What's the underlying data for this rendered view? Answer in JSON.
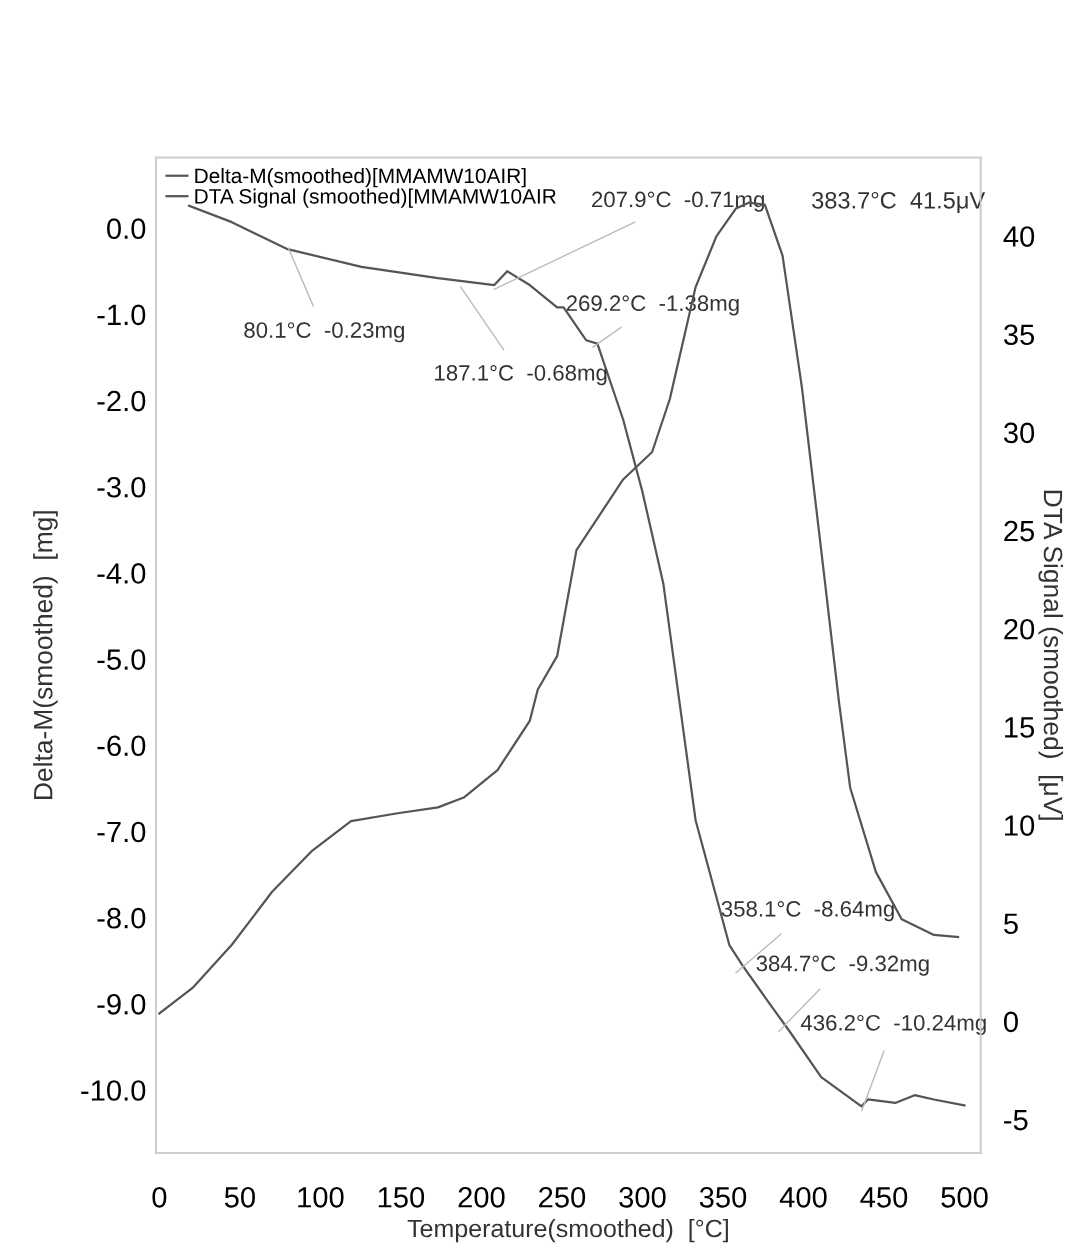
{
  "chart_data": {
    "type": "line",
    "xlabel": "Temperature(smoothed)  [°C]",
    "ylabel": "Delta-M(smoothed)  [mg]",
    "y2label": "DTA Signal (smoothed)  [μV]",
    "series": [
      {
        "name": "Delta-M(smoothed)[MMAMW10AIR]",
        "color": "#555555",
        "x": [
          18.5,
          45,
          79,
          125.5,
          173,
          208,
          216,
          230,
          247,
          251,
          265,
          272,
          288,
          300,
          313,
          323,
          333,
          354,
          362,
          379,
          391,
          411,
          436,
          440,
          457,
          469,
          481,
          500
        ],
        "values": [
          0.26,
          0.07,
          -0.24,
          -0.45,
          -0.58,
          -0.66,
          -0.5,
          -0.66,
          -0.92,
          -0.92,
          -1.3,
          -1.34,
          -2.22,
          -3.06,
          -4.13,
          -5.5,
          -6.87,
          -8.32,
          -8.55,
          -9.0,
          -9.31,
          -9.85,
          -10.19,
          -10.11,
          -10.15,
          -10.06,
          -10.11,
          -10.18
        ]
      },
      {
        "name": "DTA Signal (smoothed)[MMAMW10AIR",
        "color": "#555555",
        "axis": "y2",
        "x": [
          0,
          20.6,
          45,
          70,
          95,
          119,
          148,
          173,
          189,
          210,
          230,
          235,
          247,
          259,
          288,
          306,
          317,
          333,
          346,
          358,
          366,
          376,
          387,
          399,
          411,
          422,
          429,
          445,
          461,
          481,
          496
        ],
        "values": [
          0.4,
          1.7,
          3.9,
          6.6,
          8.7,
          10.2,
          10.6,
          10.9,
          11.4,
          12.8,
          15.3,
          16.9,
          18.6,
          24.0,
          27.6,
          29.0,
          31.7,
          37.4,
          40.0,
          41.4,
          41.7,
          41.6,
          39.0,
          32.3,
          24.0,
          16.3,
          11.9,
          7.6,
          5.2,
          4.4,
          4.3
        ]
      }
    ],
    "xlim": [
      -2,
      510
    ],
    "xticks": [
      0,
      50,
      100,
      150,
      200,
      250,
      300,
      350,
      400,
      450,
      500
    ],
    "ylim": [
      -10.73,
      0.82
    ],
    "yticks": [
      {
        "value": 0,
        "label": "0.0"
      },
      {
        "value": -1,
        "label": "-1.0"
      },
      {
        "value": -2,
        "label": "-2.0"
      },
      {
        "value": -3,
        "label": "-3.0"
      },
      {
        "value": -4,
        "label": "-4.0"
      },
      {
        "value": -5,
        "label": "-5.0"
      },
      {
        "value": -6,
        "label": "-6.0"
      },
      {
        "value": -7,
        "label": "-7.0"
      },
      {
        "value": -8,
        "label": "-8.0"
      },
      {
        "value": -9,
        "label": "-9.0"
      },
      {
        "value": -10,
        "label": "-10.0"
      }
    ],
    "y2lim": [
      -6.7,
      44.0
    ],
    "y2ticks": [
      {
        "value": -5,
        "label": "-5"
      },
      0,
      5,
      10,
      15,
      20,
      25,
      30,
      35,
      40
    ],
    "legend": "top left",
    "annotations": [
      {
        "text": "80.1°C  -0.23mg",
        "x": 80.1,
        "y": -0.23
      },
      {
        "text": "187.1°C  -0.68mg",
        "x": 187.1,
        "y": -0.68
      },
      {
        "text": "207.9°C  -0.71mg",
        "x": 207.9,
        "y": -0.71
      },
      {
        "text": "269.2°C  -1.38mg",
        "x": 269.2,
        "y": -1.38
      },
      "383.7°C  41.5μV",
      {
        "text": "358.1°C  -8.64mg",
        "x": 358.1,
        "y": -8.64
      },
      {
        "text": "384.7°C  -9.32mg",
        "x": 384.7,
        "y": -9.32
      },
      {
        "text": "436.2°C  -10.24mg",
        "x": 436.2,
        "y": -10.24
      }
    ]
  }
}
